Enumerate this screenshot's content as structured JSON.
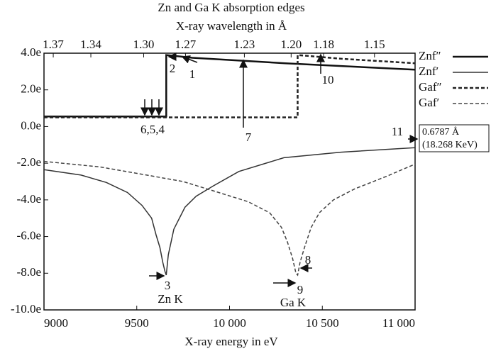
{
  "chart_data": {
    "type": "line",
    "title": "Zn and Ga K absorption edges",
    "x2label": "X-ray wavelength in Å",
    "xlabel": "X-ray energy in eV",
    "xlim": [
      9000,
      11000
    ],
    "xticks": [
      9000,
      9500,
      {
        "value": 10000,
        "label": "10 000"
      },
      {
        "value": 10500,
        "label": "10 500"
      },
      {
        "value": 11000,
        "label": "11 000"
      }
    ],
    "x2ticks": [
      1.37,
      1.34,
      {
        "value": 1.3,
        "label": "1.30"
      },
      1.27,
      1.23,
      {
        "value": 1.2,
        "label": "1.20"
      },
      1.18,
      1.15
    ],
    "ylim": [
      -10,
      4
    ],
    "yticks": [
      {
        "value": 4,
        "label": "4.0e"
      },
      {
        "value": 2,
        "label": "2.0e"
      },
      {
        "value": 0,
        "label": "0.0e"
      },
      {
        "value": -2,
        "label": "-2.0e"
      },
      {
        "value": -4,
        "label": "-4.0e"
      },
      {
        "value": -6,
        "label": "-6.0e"
      },
      {
        "value": -8,
        "label": "-8.0e"
      },
      {
        "value": -10,
        "label": "-10.0e"
      }
    ],
    "series": [
      {
        "name": "Znf″",
        "color": "#111111",
        "style": "solid",
        "linewidth": 2.5,
        "x": [
          9000,
          9659,
          9659,
          9800,
          10300,
          11000
        ],
        "values": [
          0.55,
          0.55,
          3.9,
          3.75,
          3.45,
          3.1
        ]
      },
      {
        "name": "Znf′",
        "color": "#333333",
        "style": "solid",
        "linewidth": 1.5,
        "x": [
          9000,
          9200,
          9336,
          9450,
          9528,
          9580,
          9604,
          9625,
          9640,
          9652,
          9659,
          9670,
          9700,
          9760,
          9820,
          9910,
          10050,
          10293,
          10600,
          11000
        ],
        "values": [
          -2.35,
          -2.65,
          -3.05,
          -3.6,
          -4.3,
          -5.0,
          -5.9,
          -6.6,
          -7.4,
          -7.9,
          -8.1,
          -7.0,
          -5.6,
          -4.4,
          -3.8,
          -3.25,
          -2.45,
          -1.7,
          -1.4,
          -1.15
        ]
      },
      {
        "name": "Gaf″",
        "color": "#222222",
        "style": "dashed",
        "linewidth": 2.5,
        "x": [
          9000,
          10367,
          10367,
          10600,
          11000
        ],
        "values": [
          0.5,
          0.5,
          3.9,
          3.7,
          3.45
        ]
      },
      {
        "name": "Gaf′",
        "color": "#444444",
        "style": "dashed",
        "linewidth": 1.5,
        "x": [
          9000,
          9300,
          9528,
          9750,
          9910,
          10100,
          10216,
          10280,
          10312,
          10340,
          10358,
          10367,
          10380,
          10407,
          10440,
          10484,
          10560,
          10675,
          10850,
          11000
        ],
        "values": [
          -1.9,
          -2.2,
          -2.6,
          -3.0,
          -3.5,
          -4.1,
          -4.7,
          -5.5,
          -6.3,
          -7.2,
          -8.0,
          -8.1,
          -7.4,
          -6.5,
          -5.5,
          -4.7,
          -4.0,
          -3.4,
          -2.7,
          -2.05
        ]
      }
    ],
    "legend": "right",
    "annotations": {
      "a1": "1",
      "a2": "2",
      "a3": "3",
      "zn": "Zn K",
      "a654": "6,5,4",
      "a7": "7",
      "a8": "8",
      "a9": "9",
      "ga": "Ga K",
      "a10": "10",
      "a11": "11",
      "box1": "0.6787 Å",
      "box2": "(18.268 KeV)"
    }
  }
}
